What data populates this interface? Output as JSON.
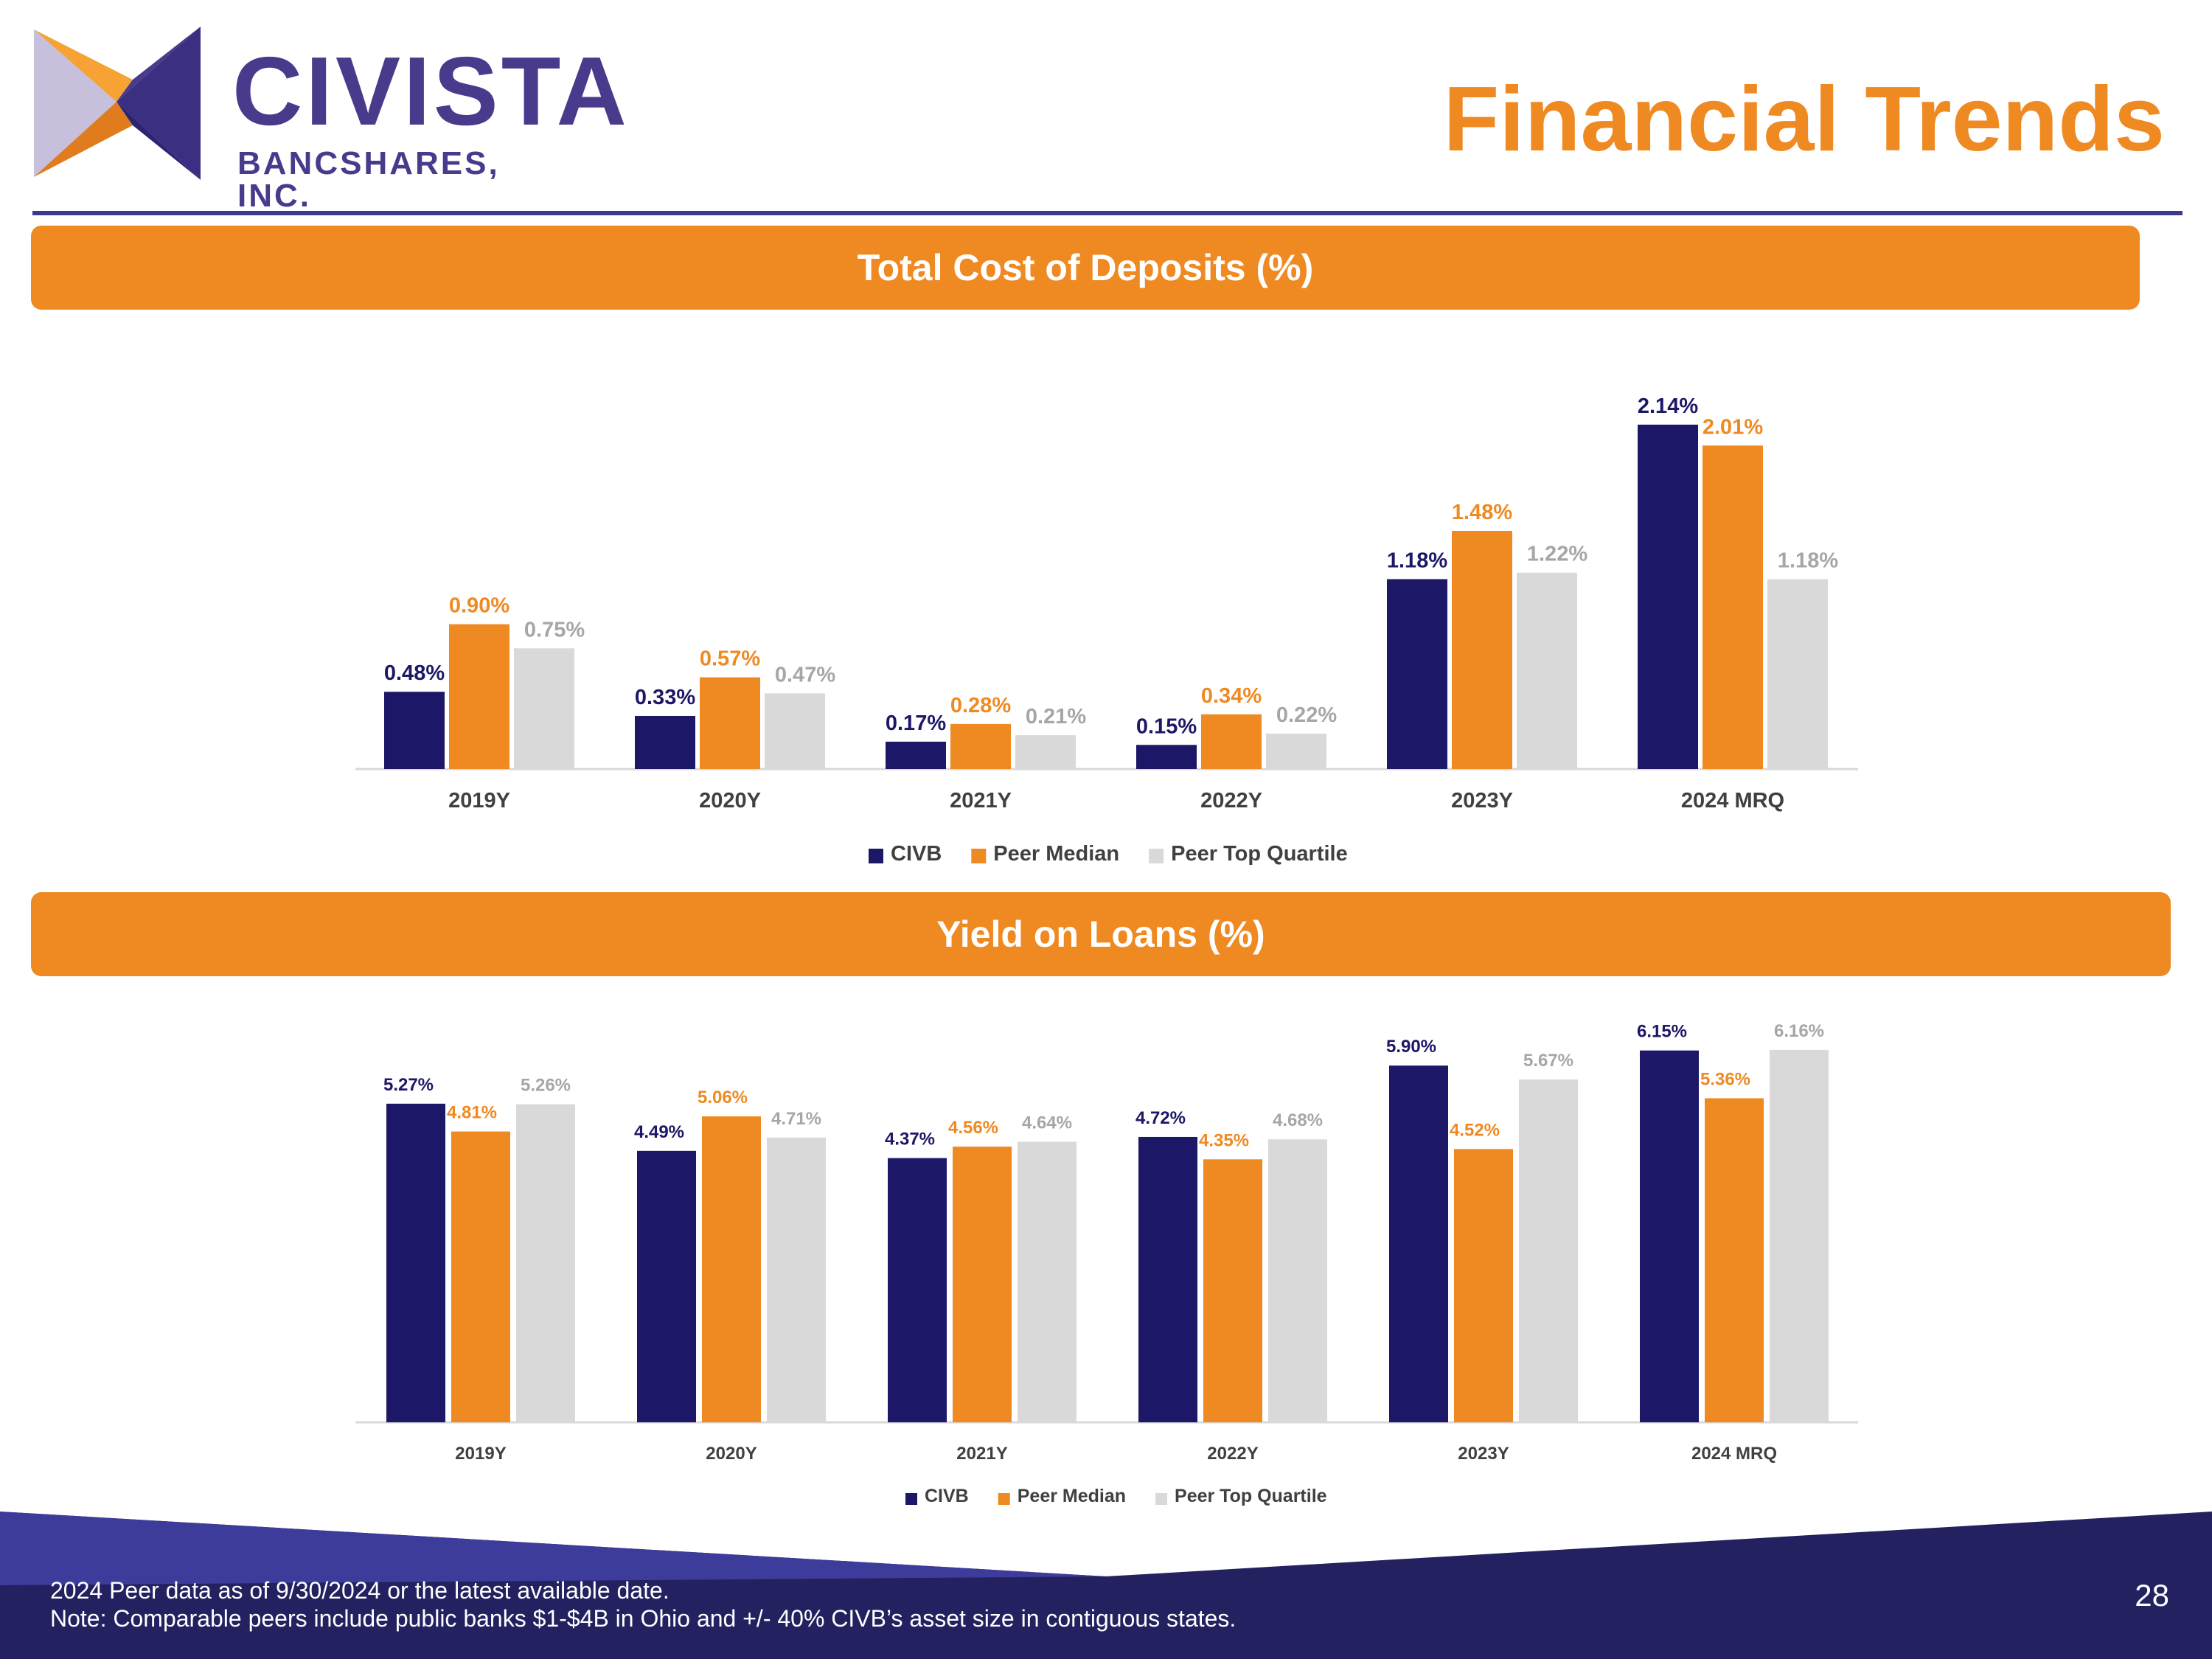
{
  "logo": {
    "name": "CIVISTA",
    "subtitle": "BANCSHARES, INC."
  },
  "page_title": "Financial Trends",
  "colors": {
    "civb": "#1c1766",
    "peer_median": "#ef8a22",
    "peer_top_quartile": "#d9d9d9",
    "banner": "#ef8a22",
    "footer": "#23215f"
  },
  "chart_data": [
    {
      "type": "bar",
      "title": "Total Cost of Deposits (%)",
      "categories": [
        "2019Y",
        "2020Y",
        "2021Y",
        "2022Y",
        "2023Y",
        "2024 MRQ"
      ],
      "series": [
        {
          "name": "CIVB",
          "values": [
            0.48,
            0.33,
            0.17,
            0.15,
            1.18,
            2.14
          ],
          "labels": [
            "0.48%",
            "0.33%",
            "0.17%",
            "0.15%",
            "1.18%",
            "2.14%"
          ]
        },
        {
          "name": "Peer Median",
          "values": [
            0.9,
            0.57,
            0.28,
            0.34,
            1.48,
            2.01
          ],
          "labels": [
            "0.90%",
            "0.57%",
            "0.28%",
            "0.34%",
            "1.48%",
            "2.01%"
          ]
        },
        {
          "name": "Peer Top Quartile",
          "values": [
            0.75,
            0.47,
            0.21,
            0.22,
            1.22,
            1.18
          ],
          "labels": [
            "0.75%",
            "0.47%",
            "0.21%",
            "0.22%",
            "1.22%",
            "1.18%"
          ]
        }
      ],
      "ylim": [
        0,
        2.3
      ],
      "legend": "bottom",
      "xlabel": "",
      "ylabel": ""
    },
    {
      "type": "bar",
      "title": "Yield on Loans (%)",
      "categories": [
        "2019Y",
        "2020Y",
        "2021Y",
        "2022Y",
        "2023Y",
        "2024 MRQ"
      ],
      "series": [
        {
          "name": "CIVB",
          "values": [
            5.27,
            4.49,
            4.37,
            4.72,
            5.9,
            6.15
          ],
          "labels": [
            "5.27%",
            "4.49%",
            "4.37%",
            "4.72%",
            "5.90%",
            "6.15%"
          ]
        },
        {
          "name": "Peer Median",
          "values": [
            4.81,
            5.06,
            4.56,
            4.35,
            4.52,
            5.36
          ],
          "labels": [
            "4.81%",
            "5.06%",
            "4.56%",
            "4.35%",
            "4.52%",
            "5.36%"
          ]
        },
        {
          "name": "Peer Top Quartile",
          "values": [
            5.26,
            4.71,
            4.64,
            4.68,
            5.67,
            6.16
          ],
          "labels": [
            "5.26%",
            "4.71%",
            "4.64%",
            "4.68%",
            "5.67%",
            "6.16%"
          ]
        }
      ],
      "ylim": [
        0,
        6.5
      ],
      "legend": "bottom",
      "xlabel": "",
      "ylabel": ""
    }
  ],
  "footer": {
    "note1": "2024 Peer data as of 9/30/2024 or the latest available date.",
    "note2": "Note: Comparable peers include public banks $1-$4B in Ohio and +/- 40% CIVB’s asset size in contiguous states.",
    "page_number": "28"
  }
}
